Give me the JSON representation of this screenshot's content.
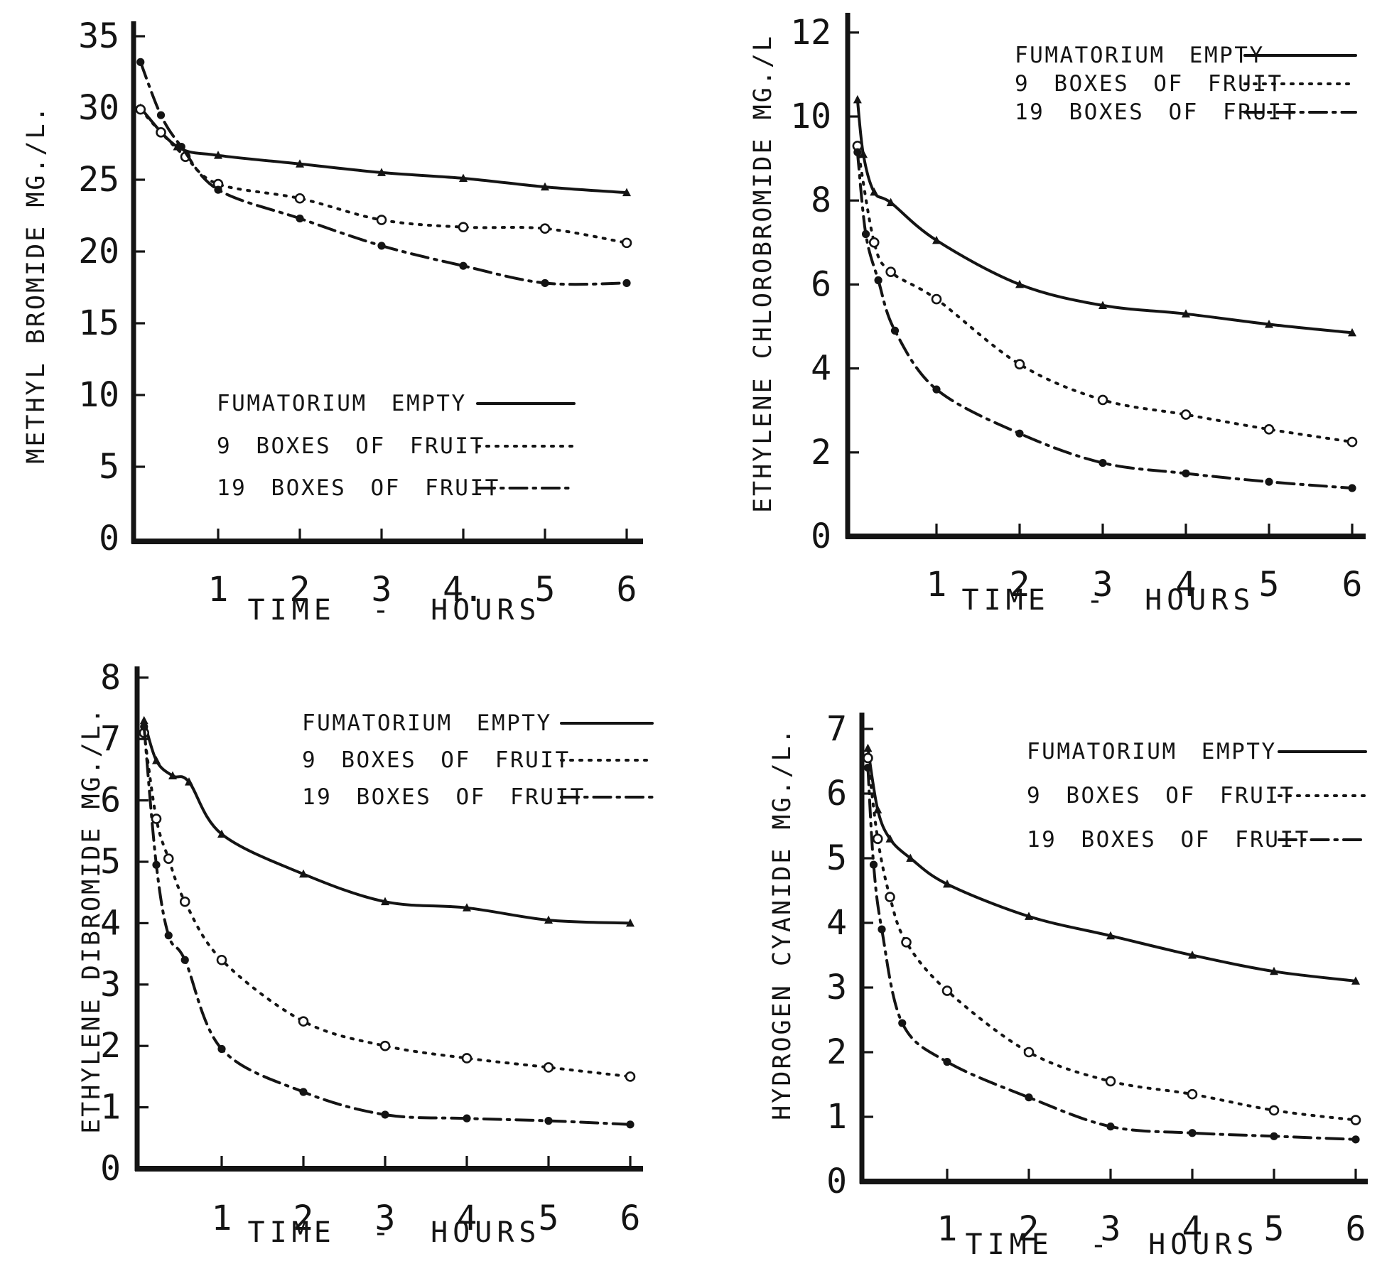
{
  "figure": {
    "background": "#ffffff",
    "ink": "#141414",
    "x_axis_label": "TIME - HOURS",
    "legend_labels": [
      "FUMATORIUM EMPTY",
      "9 BOXES OF FRUIT",
      "19 BOXES OF FRUIT"
    ]
  },
  "chart_data": [
    {
      "type": "line",
      "title": "",
      "ylabel": "METHYL BROMIDE MG./L.",
      "xlabel": "TIME - HOURS",
      "xlim": [
        0,
        6.3
      ],
      "ylim": [
        0,
        35
      ],
      "yticks": [
        0,
        5,
        10,
        15,
        20,
        25,
        30,
        35
      ],
      "xticks": [
        1,
        2,
        3,
        4,
        5,
        6
      ],
      "xtick_labels": [
        "1",
        "2",
        "3",
        "4.",
        "5",
        "6"
      ],
      "grid": false,
      "legend_position": "inside-lower-left",
      "series": [
        {
          "name": "FUMATORIUM EMPTY",
          "line_style": "solid",
          "marker": "triangle-filled",
          "points": [
            [
              0.05,
              30.0
            ],
            [
              0.5,
              27.3
            ],
            [
              1,
              26.7
            ],
            [
              2,
              26.1
            ],
            [
              3,
              25.5
            ],
            [
              4,
              25.1
            ],
            [
              5,
              24.5
            ],
            [
              6,
              24.1
            ]
          ]
        },
        {
          "name": "9 BOXES OF FRUIT",
          "line_style": "dotted",
          "marker": "circle-open",
          "points": [
            [
              0.05,
              29.9
            ],
            [
              0.3,
              28.3
            ],
            [
              0.6,
              26.6
            ],
            [
              1,
              24.7
            ],
            [
              2,
              23.7
            ],
            [
              3,
              22.2
            ],
            [
              4,
              21.7
            ],
            [
              5,
              21.6
            ],
            [
              6,
              20.6
            ]
          ]
        },
        {
          "name": "19 BOXES OF FRUIT",
          "line_style": "dashdot",
          "marker": "circle-filled",
          "points": [
            [
              0.05,
              33.2
            ],
            [
              0.3,
              29.5
            ],
            [
              0.55,
              27.3
            ],
            [
              1,
              24.3
            ],
            [
              2,
              22.3
            ],
            [
              3,
              20.4
            ],
            [
              4,
              19.0
            ],
            [
              5,
              17.8
            ],
            [
              6,
              17.8
            ]
          ]
        }
      ]
    },
    {
      "type": "line",
      "title": "",
      "ylabel": "ETHYLENE CHLOROBROMIDE MG./L",
      "xlabel": "TIME - HOURS",
      "xlim": [
        0,
        6.3
      ],
      "ylim": [
        0,
        12
      ],
      "yticks": [
        0,
        2,
        4,
        6,
        8,
        10,
        12
      ],
      "xticks": [
        1,
        2,
        3,
        4,
        5,
        6
      ],
      "xtick_labels": [
        "1",
        "2",
        "3",
        "4",
        "5",
        "6"
      ],
      "grid": false,
      "legend_position": "top-right",
      "series": [
        {
          "name": "FUMATORIUM EMPTY",
          "line_style": "solid",
          "marker": "triangle-filled",
          "points": [
            [
              0.05,
              10.4
            ],
            [
              0.12,
              9.1
            ],
            [
              0.25,
              8.2
            ],
            [
              0.45,
              7.95
            ],
            [
              1,
              7.05
            ],
            [
              2,
              6.0
            ],
            [
              3,
              5.5
            ],
            [
              4,
              5.3
            ],
            [
              5,
              5.05
            ],
            [
              6,
              4.85
            ]
          ]
        },
        {
          "name": "9 BOXES OF FRUIT",
          "line_style": "dotted",
          "marker": "circle-open",
          "points": [
            [
              0.05,
              9.3
            ],
            [
              0.25,
              7.0
            ],
            [
              0.45,
              6.3
            ],
            [
              1,
              5.65
            ],
            [
              2,
              4.1
            ],
            [
              3,
              3.25
            ],
            [
              4,
              2.9
            ],
            [
              5,
              2.55
            ],
            [
              6,
              2.25
            ]
          ]
        },
        {
          "name": "19 BOXES OF FRUIT",
          "line_style": "dashdot",
          "marker": "circle-filled",
          "points": [
            [
              0.05,
              9.15
            ],
            [
              0.15,
              7.2
            ],
            [
              0.3,
              6.1
            ],
            [
              0.5,
              4.9
            ],
            [
              1,
              3.5
            ],
            [
              2,
              2.45
            ],
            [
              3,
              1.75
            ],
            [
              4,
              1.5
            ],
            [
              5,
              1.3
            ],
            [
              6,
              1.15
            ]
          ]
        }
      ]
    },
    {
      "type": "line",
      "title": "",
      "ylabel": "ETHYLENE DIBROMIDE MG./L.",
      "xlabel": "TIME - HOURS",
      "xlim": [
        0,
        6.3
      ],
      "ylim": [
        0,
        8
      ],
      "yticks": [
        0,
        1,
        2,
        3,
        4,
        5,
        6,
        7,
        8
      ],
      "xticks": [
        1,
        2,
        3,
        4,
        5,
        6
      ],
      "xtick_labels": [
        "1",
        "2",
        "3",
        "4",
        "5",
        "6"
      ],
      "grid": false,
      "legend_position": "top-right",
      "series": [
        {
          "name": "FUMATORIUM EMPTY",
          "line_style": "solid",
          "marker": "triangle-filled",
          "points": [
            [
              0.05,
              7.3
            ],
            [
              0.2,
              6.65
            ],
            [
              0.4,
              6.4
            ],
            [
              0.6,
              6.3
            ],
            [
              1,
              5.45
            ],
            [
              2,
              4.8
            ],
            [
              3,
              4.35
            ],
            [
              4,
              4.25
            ],
            [
              5,
              4.05
            ],
            [
              6,
              4.0
            ]
          ]
        },
        {
          "name": "9 BOXES OF FRUIT",
          "line_style": "dotted",
          "marker": "circle-open",
          "points": [
            [
              0.05,
              7.1
            ],
            [
              0.2,
              5.7
            ],
            [
              0.35,
              5.05
            ],
            [
              0.55,
              4.35
            ],
            [
              1,
              3.4
            ],
            [
              2,
              2.4
            ],
            [
              3,
              2.0
            ],
            [
              4,
              1.8
            ],
            [
              5,
              1.65
            ],
            [
              6,
              1.5
            ]
          ]
        },
        {
          "name": "19 BOXES OF FRUIT",
          "line_style": "dashdot",
          "marker": "circle-filled",
          "points": [
            [
              0.05,
              7.2
            ],
            [
              0.2,
              4.95
            ],
            [
              0.35,
              3.8
            ],
            [
              0.55,
              3.4
            ],
            [
              1,
              1.95
            ],
            [
              2,
              1.25
            ],
            [
              3,
              0.88
            ],
            [
              4,
              0.82
            ],
            [
              5,
              0.78
            ],
            [
              6,
              0.72
            ]
          ]
        }
      ]
    },
    {
      "type": "line",
      "title": "",
      "ylabel": "HYDROGEN CYANIDE MG./L.",
      "xlabel": "TIME - HOURS",
      "xlim": [
        0,
        6.3
      ],
      "ylim": [
        0,
        7
      ],
      "yticks": [
        0,
        1,
        2,
        3,
        4,
        5,
        6,
        7
      ],
      "xticks": [
        1,
        2,
        3,
        4,
        5,
        6
      ],
      "xtick_labels": [
        "1",
        "2",
        "3",
        "4",
        "5",
        "6"
      ],
      "grid": false,
      "legend_position": "top-right",
      "series": [
        {
          "name": "FUMATORIUM EMPTY",
          "line_style": "solid",
          "marker": "triangle-filled",
          "points": [
            [
              0.03,
              6.7
            ],
            [
              0.15,
              5.75
            ],
            [
              0.3,
              5.3
            ],
            [
              0.55,
              5.0
            ],
            [
              1,
              4.6
            ],
            [
              2,
              4.1
            ],
            [
              3,
              3.8
            ],
            [
              4,
              3.5
            ],
            [
              5,
              3.25
            ],
            [
              6,
              3.1
            ]
          ]
        },
        {
          "name": "9 BOXES OF FRUIT",
          "line_style": "dotted",
          "marker": "circle-open",
          "points": [
            [
              0.03,
              6.55
            ],
            [
              0.15,
              5.3
            ],
            [
              0.3,
              4.4
            ],
            [
              0.5,
              3.7
            ],
            [
              1,
              2.95
            ],
            [
              2,
              2.0
            ],
            [
              3,
              1.55
            ],
            [
              4,
              1.35
            ],
            [
              5,
              1.1
            ],
            [
              6,
              0.95
            ]
          ]
        },
        {
          "name": "19 BOXES OF FRUIT",
          "line_style": "dashdot",
          "marker": "circle-filled",
          "points": [
            [
              0.03,
              6.4
            ],
            [
              0.1,
              4.9
            ],
            [
              0.2,
              3.9
            ],
            [
              0.45,
              2.45
            ],
            [
              1,
              1.85
            ],
            [
              2,
              1.3
            ],
            [
              3,
              0.85
            ],
            [
              4,
              0.75
            ],
            [
              5,
              0.7
            ],
            [
              6,
              0.65
            ]
          ]
        }
      ]
    }
  ]
}
